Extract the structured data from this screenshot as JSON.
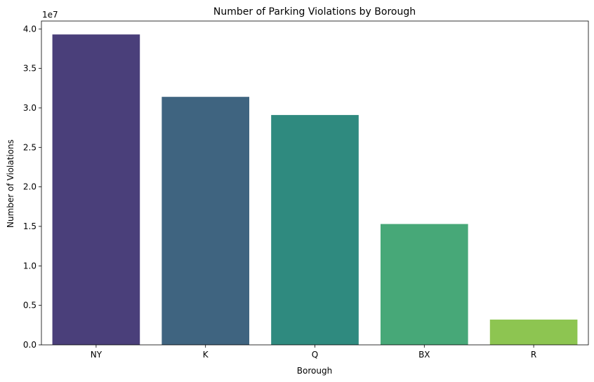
{
  "chart_data": {
    "type": "bar",
    "title": "Number of Parking Violations by Borough",
    "xlabel": "Borough",
    "ylabel": "Number of Violations",
    "y_offset_label": "1e7",
    "categories": [
      "NY",
      "K",
      "Q",
      "BX",
      "R"
    ],
    "values": [
      39300000,
      31400000,
      29100000,
      15300000,
      3200000
    ],
    "colors": [
      "#4a3f7a",
      "#3f6480",
      "#2f8a7f",
      "#47a878",
      "#8dc551"
    ],
    "ylim": [
      0,
      41000000
    ],
    "yticks": [
      0,
      5000000,
      10000000,
      15000000,
      20000000,
      25000000,
      30000000,
      35000000,
      40000000
    ],
    "ytick_labels": [
      "0.0",
      "0.5",
      "1.0",
      "1.5",
      "2.0",
      "2.5",
      "3.0",
      "3.5",
      "4.0"
    ],
    "grid": false,
    "legend": "none"
  }
}
